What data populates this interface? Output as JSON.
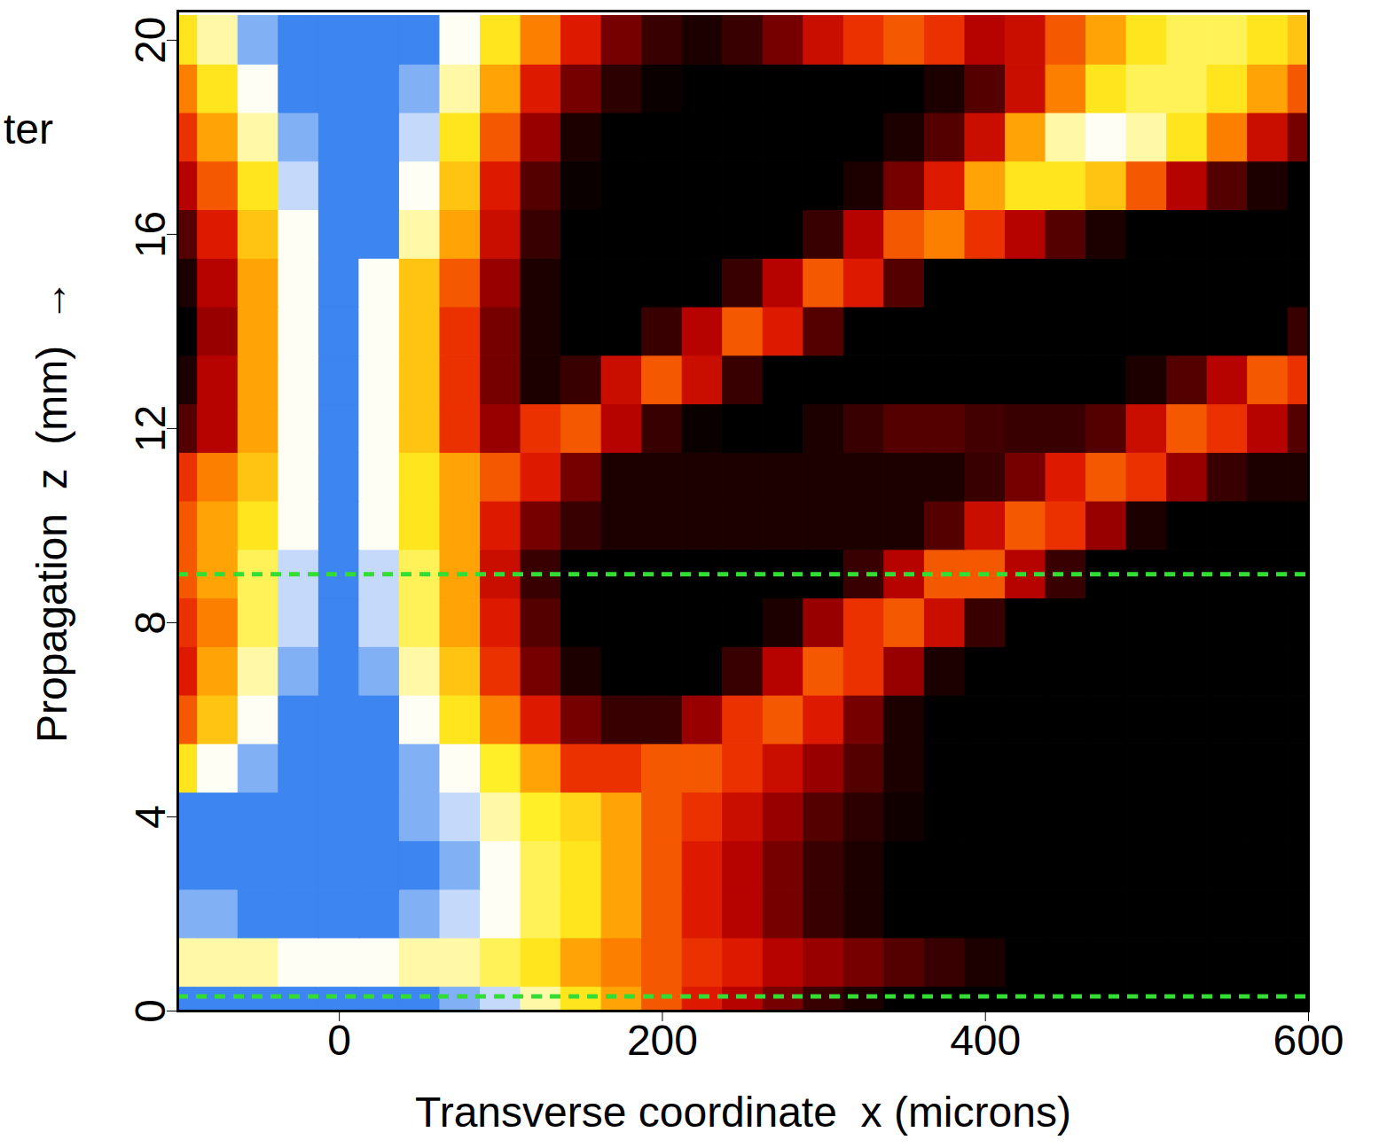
{
  "chart_data": {
    "type": "heatmap",
    "x_label": "Transverse coordinate  x (microns)",
    "y_label": "Propagation  z  (mm)  →",
    "x": [
      -100,
      -75,
      -50,
      -25,
      0,
      25,
      50,
      75,
      100,
      125,
      150,
      175,
      200,
      225,
      250,
      275,
      300,
      325,
      350,
      375,
      400,
      425,
      450,
      475,
      500,
      525,
      550,
      575,
      600
    ],
    "y": [
      0,
      1,
      2,
      3,
      4,
      5,
      6,
      7,
      8,
      9,
      10,
      11,
      12,
      13,
      14,
      15,
      16,
      17,
      18,
      19,
      20
    ],
    "values": [
      [
        1,
        1,
        1,
        1,
        1,
        1,
        1,
        0.95,
        0.9,
        0.8,
        0.7,
        0.6,
        0.5,
        0.4,
        0.3,
        0.2,
        0.1,
        0.05,
        0,
        0,
        0,
        0,
        0,
        0,
        0,
        0,
        0,
        0,
        0
      ],
      [
        0.8,
        0.8,
        0.8,
        0.85,
        0.85,
        0.85,
        0.8,
        0.8,
        0.75,
        0.7,
        0.6,
        0.55,
        0.5,
        0.45,
        0.4,
        0.3,
        0.25,
        0.2,
        0.15,
        0.1,
        0.05,
        0,
        0,
        0,
        0,
        0,
        0,
        0,
        0
      ],
      [
        0.95,
        0.95,
        1,
        1,
        1,
        1,
        0.95,
        0.9,
        0.85,
        0.75,
        0.7,
        0.6,
        0.5,
        0.4,
        0.3,
        0.2,
        0.1,
        0.05,
        0,
        0,
        0,
        0,
        0,
        0,
        0,
        0,
        0,
        0,
        0
      ],
      [
        1,
        1,
        1,
        1,
        1,
        1,
        1,
        0.95,
        0.85,
        0.75,
        0.7,
        0.6,
        0.5,
        0.4,
        0.3,
        0.2,
        0.1,
        0.05,
        0,
        0,
        0,
        0,
        0,
        0,
        0,
        0,
        0,
        0,
        0
      ],
      [
        1,
        1,
        1,
        1,
        1,
        1,
        0.95,
        0.9,
        0.8,
        0.72,
        0.68,
        0.6,
        0.5,
        0.45,
        0.35,
        0.25,
        0.15,
        0.08,
        0.03,
        0,
        0,
        0,
        0,
        0,
        0,
        0,
        0,
        0,
        0
      ],
      [
        0.7,
        0.85,
        0.95,
        1,
        1,
        1,
        0.95,
        0.85,
        0.72,
        0.6,
        0.45,
        0.45,
        0.5,
        0.5,
        0.45,
        0.35,
        0.25,
        0.15,
        0.05,
        0,
        0,
        0,
        0,
        0,
        0,
        0,
        0,
        0,
        0
      ],
      [
        0.5,
        0.65,
        0.85,
        1,
        1,
        1,
        0.85,
        0.7,
        0.55,
        0.4,
        0.2,
        0.1,
        0.1,
        0.25,
        0.45,
        0.5,
        0.4,
        0.2,
        0.05,
        0,
        0,
        0,
        0,
        0,
        0,
        0,
        0,
        0,
        0
      ],
      [
        0.4,
        0.6,
        0.8,
        0.95,
        1,
        0.95,
        0.8,
        0.65,
        0.45,
        0.2,
        0.05,
        0,
        0,
        0,
        0.1,
        0.3,
        0.5,
        0.45,
        0.25,
        0.05,
        0,
        0,
        0,
        0,
        0,
        0,
        0,
        0,
        0
      ],
      [
        0.45,
        0.55,
        0.75,
        0.9,
        1,
        0.9,
        0.75,
        0.6,
        0.4,
        0.15,
        0,
        0,
        0,
        0,
        0,
        0.05,
        0.25,
        0.45,
        0.5,
        0.35,
        0.1,
        0,
        0,
        0,
        0,
        0,
        0,
        0,
        0
      ],
      [
        0.5,
        0.6,
        0.75,
        0.9,
        1,
        0.9,
        0.75,
        0.6,
        0.35,
        0.1,
        0,
        0,
        0,
        0,
        0,
        0,
        0,
        0.1,
        0.3,
        0.5,
        0.5,
        0.3,
        0.1,
        0,
        0,
        0,
        0,
        0,
        0
      ],
      [
        0.5,
        0.6,
        0.7,
        0.85,
        1,
        0.85,
        0.7,
        0.6,
        0.4,
        0.2,
        0.1,
        0.05,
        0.05,
        0.05,
        0.05,
        0.05,
        0.05,
        0.05,
        0.05,
        0.15,
        0.35,
        0.5,
        0.45,
        0.25,
        0.05,
        0,
        0,
        0,
        0
      ],
      [
        0.45,
        0.55,
        0.65,
        0.85,
        1,
        0.85,
        0.7,
        0.6,
        0.5,
        0.4,
        0.2,
        0.05,
        0.05,
        0.05,
        0.05,
        0.05,
        0.05,
        0.05,
        0.05,
        0.05,
        0.1,
        0.2,
        0.4,
        0.5,
        0.45,
        0.25,
        0.1,
        0.05,
        0.05
      ],
      [
        0.15,
        0.3,
        0.6,
        0.85,
        1,
        0.85,
        0.65,
        0.45,
        0.25,
        0.45,
        0.5,
        0.3,
        0.1,
        0.02,
        0,
        0,
        0.05,
        0.1,
        0.15,
        0.15,
        0.12,
        0.1,
        0.1,
        0.15,
        0.35,
        0.5,
        0.45,
        0.3,
        0.15
      ],
      [
        0.05,
        0.3,
        0.6,
        0.85,
        1,
        0.85,
        0.65,
        0.45,
        0.2,
        0.05,
        0.1,
        0.35,
        0.5,
        0.35,
        0.1,
        0,
        0,
        0,
        0,
        0,
        0,
        0,
        0,
        0,
        0.05,
        0.15,
        0.3,
        0.5,
        0.45
      ],
      [
        0,
        0.25,
        0.6,
        0.85,
        1,
        0.85,
        0.65,
        0.45,
        0.2,
        0.05,
        0,
        0,
        0.1,
        0.3,
        0.5,
        0.4,
        0.15,
        0,
        0,
        0,
        0,
        0,
        0,
        0,
        0,
        0,
        0,
        0,
        0.1
      ],
      [
        0.05,
        0.3,
        0.6,
        0.85,
        1,
        0.85,
        0.65,
        0.5,
        0.25,
        0.05,
        0,
        0,
        0,
        0,
        0.1,
        0.3,
        0.5,
        0.4,
        0.15,
        0,
        0,
        0,
        0,
        0,
        0,
        0,
        0,
        0,
        0
      ],
      [
        0.15,
        0.4,
        0.65,
        0.85,
        1,
        1,
        0.8,
        0.6,
        0.35,
        0.1,
        0,
        0,
        0,
        0,
        0,
        0,
        0.1,
        0.3,
        0.5,
        0.55,
        0.45,
        0.3,
        0.15,
        0.05,
        0,
        0,
        0,
        0,
        0
      ],
      [
        0.3,
        0.5,
        0.7,
        0.9,
        1,
        1,
        0.85,
        0.65,
        0.4,
        0.15,
        0.02,
        0,
        0,
        0,
        0,
        0,
        0,
        0.05,
        0.2,
        0.4,
        0.6,
        0.7,
        0.7,
        0.65,
        0.5,
        0.3,
        0.15,
        0.05,
        0
      ],
      [
        0.45,
        0.6,
        0.8,
        0.95,
        1,
        1,
        0.9,
        0.7,
        0.5,
        0.25,
        0.05,
        0,
        0,
        0,
        0,
        0,
        0,
        0,
        0.05,
        0.15,
        0.35,
        0.6,
        0.8,
        0.85,
        0.8,
        0.7,
        0.55,
        0.35,
        0.2
      ],
      [
        0.55,
        0.7,
        0.85,
        1,
        1,
        1,
        0.95,
        0.8,
        0.6,
        0.4,
        0.2,
        0.08,
        0.02,
        0,
        0,
        0,
        0,
        0,
        0,
        0.05,
        0.15,
        0.35,
        0.55,
        0.7,
        0.75,
        0.75,
        0.7,
        0.6,
        0.5
      ],
      [
        0.7,
        0.8,
        0.95,
        1,
        1,
        1,
        1,
        0.85,
        0.7,
        0.55,
        0.4,
        0.2,
        0.1,
        0.05,
        0.1,
        0.2,
        0.35,
        0.45,
        0.5,
        0.45,
        0.3,
        0.35,
        0.5,
        0.6,
        0.7,
        0.75,
        0.75,
        0.7,
        0.65
      ]
    ],
    "zlim": [
      0,
      1
    ],
    "xlim": [
      -100,
      600
    ],
    "xticks": [
      0,
      200,
      400,
      600
    ],
    "ylim": [
      0,
      20.6
    ],
    "yticks": [
      0,
      4,
      8,
      12,
      16,
      20
    ],
    "reference_lines": {
      "values": [
        0.3,
        9
      ],
      "color": "#33dd33",
      "line_style": "dashed"
    },
    "annotations": [
      "ter"
    ]
  }
}
